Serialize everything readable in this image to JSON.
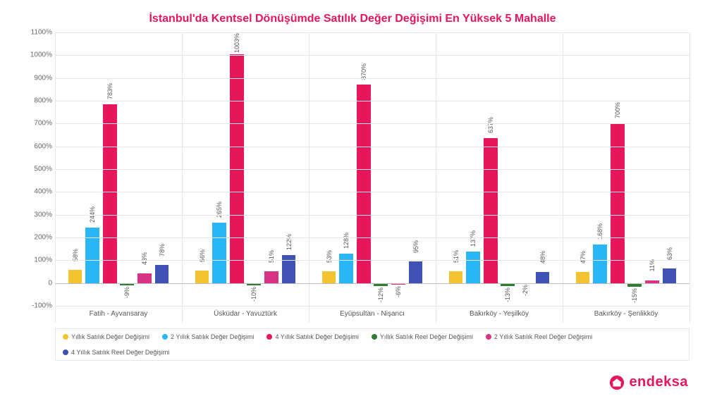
{
  "title": "İstanbul'da Kentsel Dönüşümde Satılık Değer Değişimi En Yüksek 5 Mahalle",
  "brand": {
    "name": "endeksa",
    "color": "#e6165a"
  },
  "chart": {
    "type": "bar",
    "background_color": "#ffffff",
    "grid_color": "#e6e6e6",
    "axis_line_color": "#bdbdbd",
    "tick_font_color": "#666666",
    "label_font_color": "#555555",
    "tick_fontsize": 10,
    "title_fontsize": 16,
    "bar_label_fontsize": 9,
    "ylim_min": -100,
    "ylim_max": 1100,
    "ytick_step": 100,
    "ytick_suffix": "%",
    "categories": [
      "Fatih - Ayvansaray",
      "Üsküdar - Yavuztürk",
      "Eyüpsultan - Nişancı",
      "Bakırköy - Yeşilköy",
      "Bakırköy - Şenlikköy"
    ],
    "series": [
      {
        "label": "Yıllık Satılık Değer Değişimi",
        "color": "#f4c430"
      },
      {
        "label": "2 Yıllık Satılık Değer Değişimi",
        "color": "#29b6f6"
      },
      {
        "label": "4 Yıllık Satılık Değer Değişimi",
        "color": "#e6165a"
      },
      {
        "label": "Yıllık Satılık Reel Değer Değişimi",
        "color": "#2e7d32"
      },
      {
        "label": "2 Yıllık Satılık Reel Değer Değişimi",
        "color": "#d63384"
      },
      {
        "label": "4 Yıllık Satılık Reel Değer Değişimi",
        "color": "#3f51b5"
      }
    ],
    "data": [
      [
        58,
        244,
        783,
        -9,
        43,
        78
      ],
      [
        56,
        265,
        1003,
        -10,
        51,
        122
      ],
      [
        53,
        128,
        870,
        -12,
        -6,
        95
      ],
      [
        51,
        137,
        637,
        -13,
        -2,
        48
      ],
      [
        47,
        168,
        700,
        -15,
        11,
        63
      ]
    ],
    "bar_width_ratio": 0.8,
    "group_gap_ratio": 0.18
  }
}
